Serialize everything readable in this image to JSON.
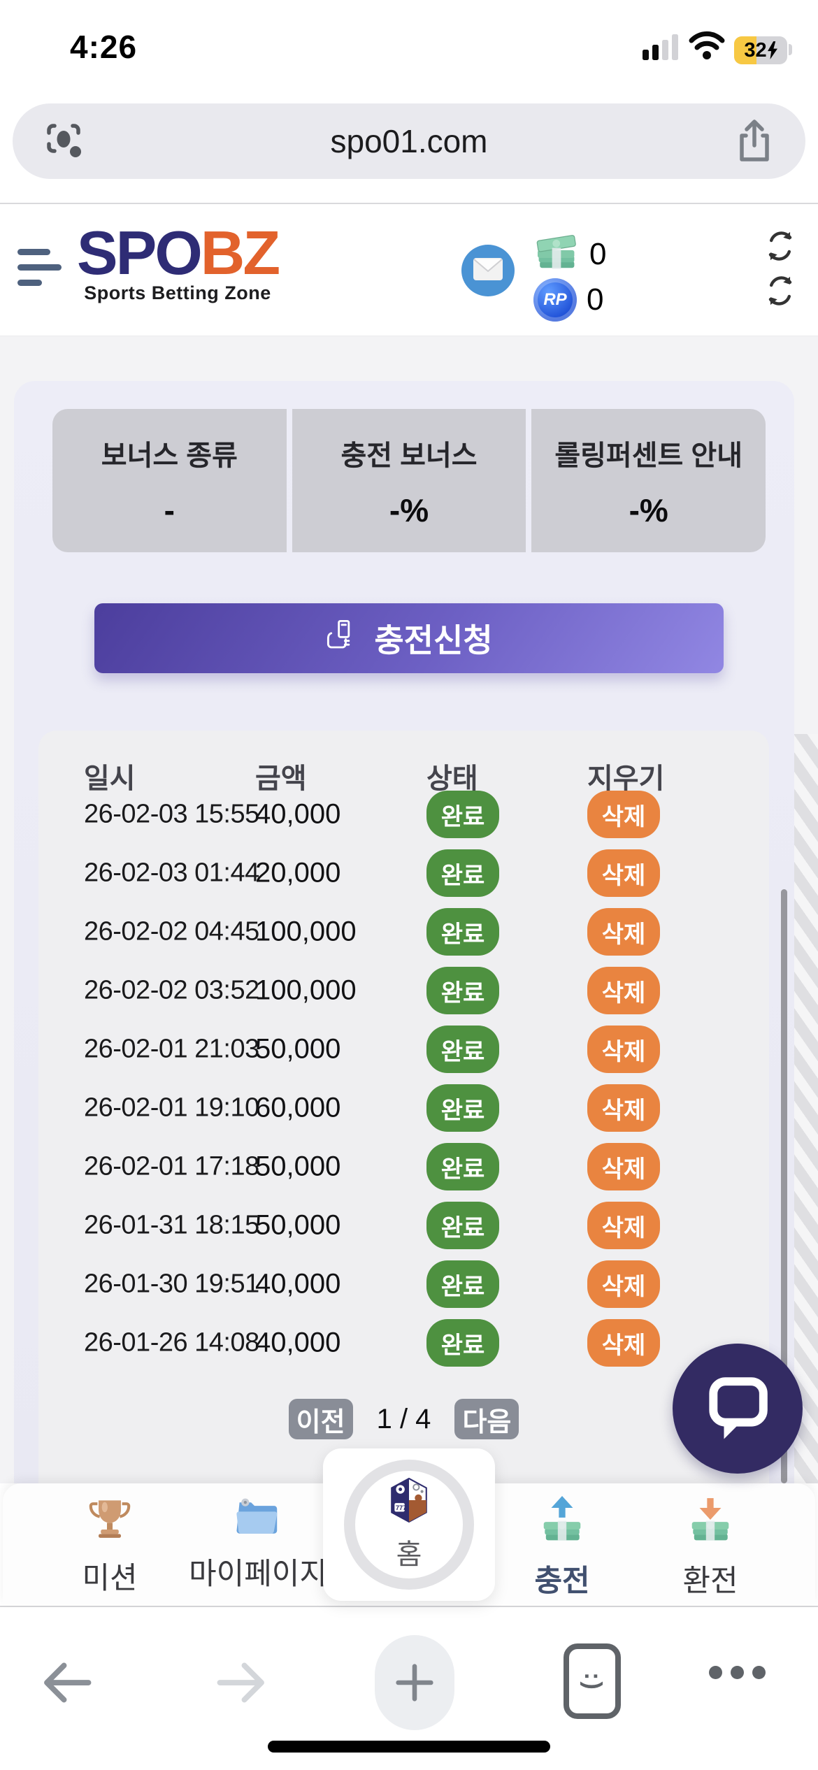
{
  "status_bar": {
    "time": "4:26",
    "battery_percent": "32"
  },
  "browser": {
    "url": "spo01.com",
    "tab_glyph": ":)"
  },
  "header": {
    "logo_part1": "SPO",
    "logo_part2": "BZ",
    "tagline": "Sports Betting Zone",
    "cash_value": "0",
    "rp_label": "RP",
    "rp_value": "0"
  },
  "bonus": {
    "items": [
      {
        "label": "보너스 종류",
        "value": "-"
      },
      {
        "label": "충전 보너스",
        "value": "-%"
      },
      {
        "label": "롤링퍼센트 안내",
        "value": "-%"
      }
    ]
  },
  "deposit_button": {
    "label": "충전신청"
  },
  "table": {
    "headers": [
      "일시",
      "금액",
      "상태",
      "지우기"
    ],
    "rows": [
      {
        "date": "26-02-03 15:55",
        "amount": "40,000",
        "status": "완료",
        "action": "삭제"
      },
      {
        "date": "26-02-03 01:44",
        "amount": "20,000",
        "status": "완료",
        "action": "삭제"
      },
      {
        "date": "26-02-02 04:45",
        "amount": "100,000",
        "status": "완료",
        "action": "삭제"
      },
      {
        "date": "26-02-02 03:52",
        "amount": "100,000",
        "status": "완료",
        "action": "삭제"
      },
      {
        "date": "26-02-01 21:03",
        "amount": "50,000",
        "status": "완료",
        "action": "삭제"
      },
      {
        "date": "26-02-01 19:10",
        "amount": "60,000",
        "status": "완료",
        "action": "삭제"
      },
      {
        "date": "26-02-01 17:18",
        "amount": "50,000",
        "status": "완료",
        "action": "삭제"
      },
      {
        "date": "26-01-31 18:15",
        "amount": "50,000",
        "status": "완료",
        "action": "삭제"
      },
      {
        "date": "26-01-30 19:51",
        "amount": "40,000",
        "status": "완료",
        "action": "삭제"
      },
      {
        "date": "26-01-26 14:08",
        "amount": "40,000",
        "status": "완료",
        "action": "삭제"
      }
    ]
  },
  "pagination": {
    "prev": "이전",
    "current": "1 / 4",
    "next": "다음"
  },
  "bottom_nav": {
    "items": [
      {
        "label": "미션"
      },
      {
        "label": "마이페이지"
      },
      {
        "label": "홈"
      },
      {
        "label": "충전",
        "active": true
      },
      {
        "label": "환전"
      }
    ]
  },
  "colors": {
    "accent_purple": "#4c3e9d",
    "status_done_green": "#4e9140",
    "action_delete_orange": "#e98440",
    "pager_gray": "#898d97",
    "chat_navy": "#332b63",
    "logo_navy": "#2e2c75",
    "logo_orange": "#e2622c",
    "mail_blue": "#4a93d4",
    "battery_yellow": "#f7c843",
    "lavender_bg": "#ebebf5",
    "panel_gray": "#efeff1"
  }
}
